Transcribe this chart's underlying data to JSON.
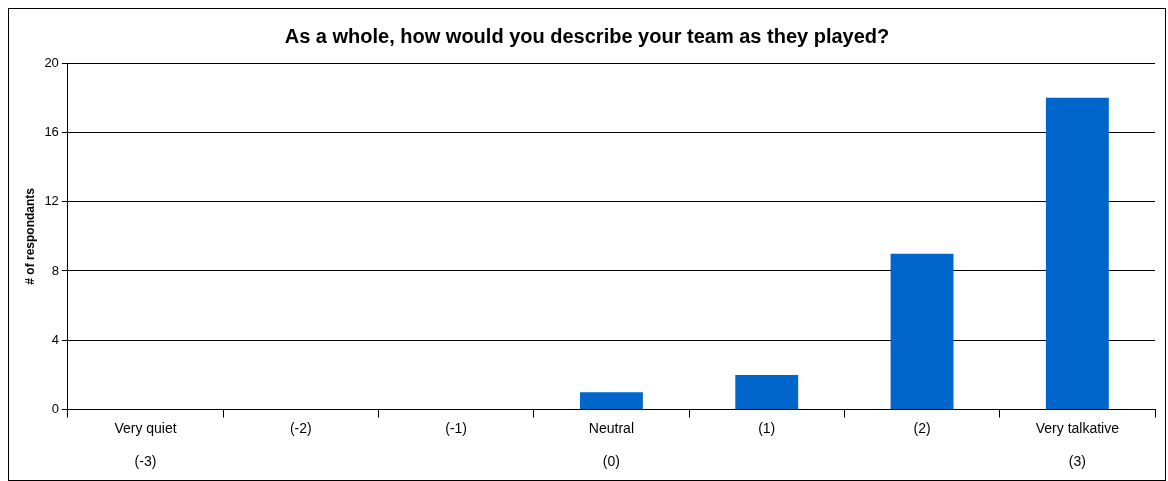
{
  "chart_data": {
    "type": "bar",
    "title": "As a whole, how would you describe your team as they played?",
    "ylabel": "# of respondants",
    "categories": [
      "Very quiet\n\n(-3)",
      "(-2)",
      "(-1)",
      "Neutral\n\n(0)",
      "(1)",
      "(2)",
      "Very talkative\n\n(3)"
    ],
    "values": [
      0,
      0,
      0,
      1,
      2,
      9,
      18
    ],
    "color": "#0066cc",
    "ylim": [
      0,
      20
    ],
    "yticks": [
      0,
      4,
      8,
      12,
      16,
      20
    ],
    "grid": "y",
    "legend": false
  }
}
